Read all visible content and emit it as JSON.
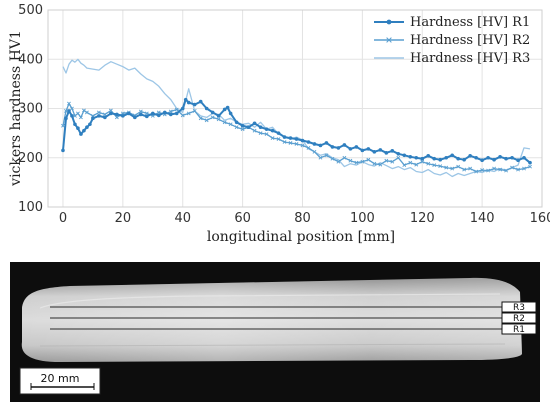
{
  "chart_data": {
    "type": "line",
    "title": "",
    "xlabel": "longitudinal position [mm]",
    "ylabel": "vickers hardness HV1",
    "xlim": [
      -5,
      160
    ],
    "ylim": [
      100,
      500
    ],
    "xticks": [
      0,
      20,
      40,
      60,
      80,
      100,
      120,
      140,
      160
    ],
    "yticks": [
      100,
      200,
      300,
      400,
      500
    ],
    "grid": true,
    "legend_position": "top-right",
    "series": [
      {
        "name": "Hardness [HV] R1",
        "color": "#2f7fbf",
        "marker": "dot",
        "x": [
          0,
          1,
          2,
          3,
          4,
          5,
          6,
          7,
          8,
          9,
          10,
          12,
          14,
          16,
          18,
          20,
          22,
          24,
          26,
          28,
          30,
          32,
          34,
          36,
          38,
          40,
          41,
          42,
          44,
          46,
          48,
          50,
          52,
          54,
          55,
          56,
          58,
          60,
          62,
          64,
          66,
          68,
          70,
          72,
          74,
          76,
          78,
          80,
          82,
          84,
          86,
          88,
          90,
          92,
          94,
          96,
          98,
          100,
          102,
          104,
          106,
          108,
          110,
          112,
          114,
          116,
          118,
          120,
          122,
          124,
          126,
          128,
          130,
          132,
          134,
          136,
          138,
          140,
          142,
          144,
          146,
          148,
          150,
          152,
          154,
          156
        ],
        "y": [
          215,
          280,
          295,
          285,
          268,
          260,
          248,
          255,
          262,
          268,
          280,
          285,
          282,
          290,
          288,
          285,
          290,
          282,
          288,
          284,
          290,
          286,
          292,
          288,
          290,
          300,
          318,
          312,
          308,
          314,
          300,
          292,
          285,
          298,
          302,
          290,
          272,
          265,
          262,
          270,
          262,
          258,
          255,
          250,
          242,
          240,
          238,
          235,
          232,
          228,
          225,
          230,
          222,
          220,
          226,
          218,
          222,
          215,
          218,
          212,
          216,
          210,
          214,
          208,
          205,
          202,
          200,
          198,
          204,
          198,
          196,
          200,
          205,
          198,
          196,
          204,
          200,
          195,
          200,
          196,
          202,
          198,
          200,
          195,
          200,
          190
        ]
      },
      {
        "name": "Hardness [HV] R2",
        "color": "#5a9fd0",
        "marker": "x",
        "x": [
          0,
          1,
          2,
          3,
          4,
          5,
          6,
          7,
          8,
          10,
          12,
          14,
          16,
          18,
          20,
          22,
          24,
          26,
          28,
          30,
          32,
          34,
          36,
          38,
          40,
          42,
          44,
          46,
          48,
          50,
          52,
          54,
          56,
          58,
          60,
          62,
          64,
          66,
          68,
          70,
          72,
          74,
          76,
          78,
          80,
          82,
          84,
          86,
          88,
          90,
          92,
          94,
          96,
          98,
          100,
          102,
          104,
          106,
          108,
          110,
          112,
          114,
          116,
          118,
          120,
          122,
          124,
          126,
          128,
          130,
          132,
          134,
          136,
          138,
          140,
          142,
          144,
          146,
          148,
          150,
          152,
          154,
          156
        ],
        "y": [
          265,
          295,
          310,
          300,
          285,
          290,
          282,
          296,
          292,
          285,
          292,
          288,
          296,
          282,
          290,
          292,
          286,
          294,
          290,
          285,
          292,
          288,
          294,
          298,
          286,
          290,
          295,
          280,
          276,
          282,
          278,
          272,
          268,
          262,
          258,
          262,
          255,
          250,
          248,
          240,
          238,
          232,
          230,
          228,
          225,
          220,
          212,
          200,
          205,
          198,
          192,
          200,
          194,
          190,
          192,
          196,
          188,
          186,
          194,
          192,
          200,
          185,
          190,
          186,
          192,
          188,
          185,
          183,
          180,
          178,
          182,
          176,
          178,
          172,
          175,
          174,
          178,
          176,
          174,
          180,
          176,
          178,
          182
        ]
      },
      {
        "name": "Hardness [HV] R3",
        "color": "#9dc6e6",
        "marker": "none",
        "x": [
          0,
          1,
          2,
          3,
          4,
          5,
          6,
          7,
          8,
          10,
          12,
          14,
          16,
          18,
          20,
          22,
          24,
          26,
          28,
          30,
          32,
          34,
          36,
          38,
          40,
          42,
          44,
          46,
          48,
          50,
          52,
          54,
          56,
          58,
          60,
          62,
          64,
          66,
          68,
          70,
          72,
          74,
          76,
          78,
          80,
          82,
          84,
          86,
          88,
          90,
          92,
          94,
          96,
          98,
          100,
          102,
          104,
          106,
          108,
          110,
          112,
          114,
          116,
          118,
          120,
          122,
          124,
          126,
          128,
          130,
          132,
          134,
          136,
          138,
          140,
          142,
          144,
          146,
          148,
          150,
          152,
          154,
          156
        ],
        "y": [
          385,
          372,
          390,
          398,
          394,
          400,
          392,
          388,
          382,
          380,
          378,
          388,
          395,
          390,
          385,
          378,
          382,
          370,
          360,
          355,
          345,
          330,
          318,
          300,
          292,
          340,
          295,
          285,
          282,
          290,
          288,
          276,
          280,
          272,
          268,
          270,
          262,
          272,
          258,
          262,
          248,
          242,
          238,
          242,
          236,
          218,
          212,
          205,
          208,
          200,
          196,
          182,
          188,
          185,
          192,
          186,
          183,
          190,
          184,
          178,
          182,
          176,
          180,
          172,
          170,
          176,
          168,
          165,
          170,
          162,
          168,
          164,
          168,
          172,
          170,
          175,
          172,
          178,
          175,
          180,
          185,
          220,
          218
        ]
      }
    ]
  },
  "specimen": {
    "row_labels": [
      "R3",
      "R2",
      "R1"
    ],
    "scale_bar_label": "20 mm"
  }
}
